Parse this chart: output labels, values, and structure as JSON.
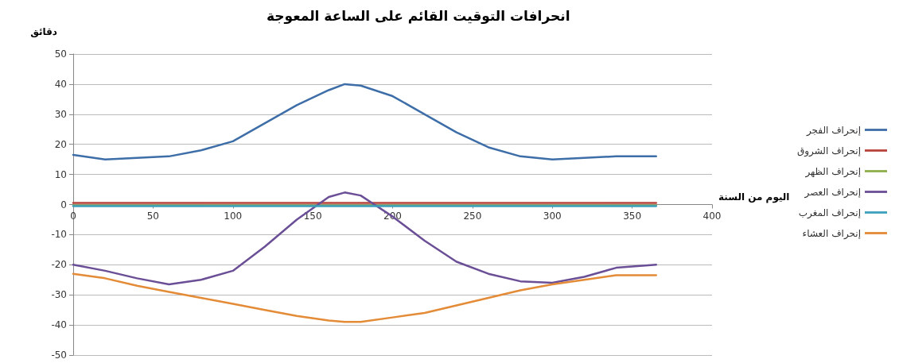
{
  "chart_data": {
    "type": "line",
    "title": "انحرافات التوقيت القائم على الساعة المعوجة",
    "xlabel": "اليوم من السنة",
    "ylabel": "دقائق",
    "xlim": [
      0,
      400
    ],
    "xticks": [
      0,
      50,
      100,
      150,
      200,
      250,
      300,
      350,
      400
    ],
    "ylim": [
      -50,
      50
    ],
    "yticks": [
      -50,
      -40,
      -30,
      -20,
      -10,
      0,
      10,
      20,
      30,
      40,
      50
    ],
    "x": [
      0,
      20,
      40,
      60,
      80,
      100,
      120,
      140,
      160,
      170,
      180,
      200,
      220,
      240,
      260,
      280,
      300,
      320,
      340,
      365
    ],
    "series": [
      {
        "name": "إنحراف الفجر",
        "color": "#3e6ea8",
        "values": [
          16.5,
          15,
          15.5,
          16,
          18,
          21,
          27,
          33,
          38,
          40,
          39.5,
          36,
          30,
          24,
          19,
          16,
          15,
          15.5,
          16,
          16
        ]
      },
      {
        "name": "إنحراف الشروق",
        "color": "#b8433b",
        "values": [
          0.5,
          0.5,
          0.5,
          0.5,
          0.5,
          0.5,
          0.5,
          0.5,
          0.5,
          0.5,
          0.5,
          0.5,
          0.5,
          0.5,
          0.5,
          0.5,
          0.5,
          0.5,
          0.5,
          0.5
        ]
      },
      {
        "name": "إنحراف الظهر",
        "color": "#8fae4a",
        "values": [
          -0.3,
          -0.3,
          -0.3,
          -0.3,
          -0.3,
          -0.3,
          -0.3,
          -0.3,
          -0.3,
          -0.3,
          -0.3,
          -0.3,
          -0.3,
          -0.3,
          -0.3,
          -0.3,
          -0.3,
          -0.3,
          -0.3,
          -0.3
        ]
      },
      {
        "name": "إنحراف العصر",
        "color": "#6b4f96",
        "values": [
          -20,
          -22,
          -24.5,
          -26.5,
          -25,
          -22,
          -14,
          -5,
          2.5,
          4,
          3,
          -4,
          -12,
          -19,
          -23,
          -25.5,
          -26,
          -24,
          -21,
          -20
        ]
      },
      {
        "name": "إنحراف المغرب",
        "color": "#3aa0bd",
        "values": [
          -0.5,
          -0.5,
          -0.5,
          -0.5,
          -0.5,
          -0.5,
          -0.5,
          -0.5,
          -0.5,
          -0.5,
          -0.5,
          -0.5,
          -0.5,
          -0.5,
          -0.5,
          -0.5,
          -0.5,
          -0.5,
          -0.5,
          -0.5
        ]
      },
      {
        "name": "إنحراف العشاء",
        "color": "#e38b36",
        "values": [
          -23,
          -24.5,
          -27,
          -29,
          -31,
          -33,
          -35,
          -37,
          -38.5,
          -39,
          -39,
          -37.5,
          -36,
          -33.5,
          -31,
          -28.5,
          -26.5,
          -25,
          -23.5,
          -23.5
        ]
      }
    ],
    "grid": "y",
    "legend": "right",
    "marker": "none",
    "line_style": "solid"
  }
}
